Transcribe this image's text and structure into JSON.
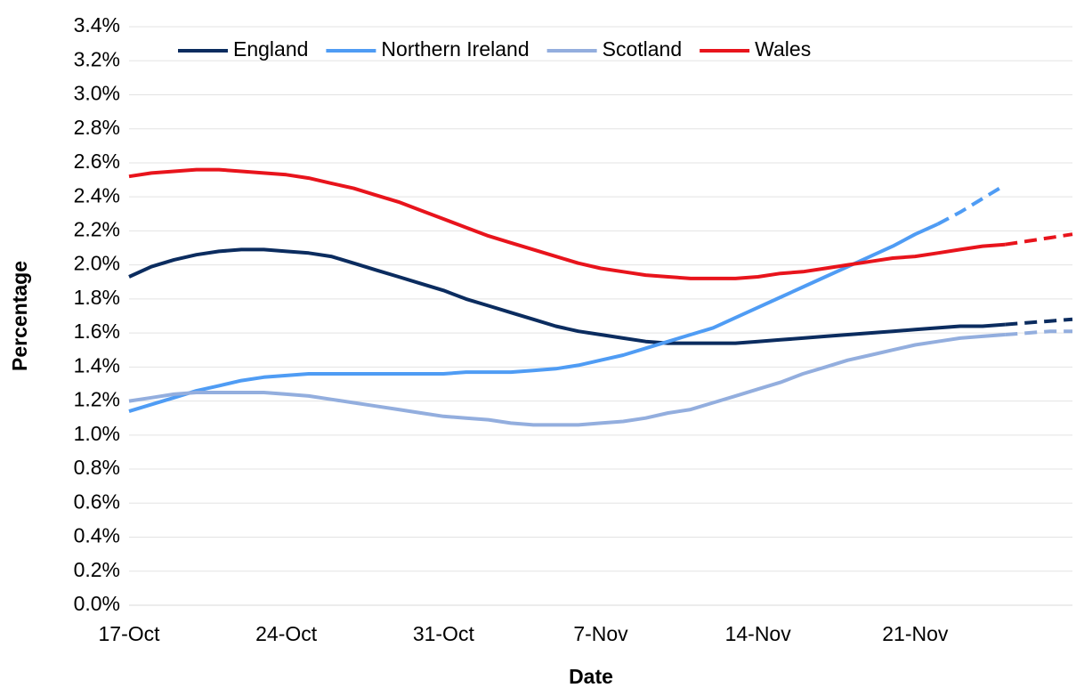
{
  "chart_data": {
    "type": "line",
    "xlabel": "Date",
    "ylabel": "Percentage",
    "categories": [
      "17-Oct",
      null,
      null,
      null,
      null,
      null,
      null,
      "24-Oct",
      null,
      null,
      null,
      null,
      null,
      null,
      "31-Oct",
      null,
      null,
      null,
      null,
      null,
      null,
      "7-Nov",
      null,
      null,
      null,
      null,
      null,
      null,
      "14-Nov",
      null,
      null,
      null,
      null,
      null,
      null,
      "21-Nov",
      null,
      null,
      null,
      null,
      null,
      null,
      null
    ],
    "ylim": [
      0,
      3.4
    ],
    "yticks": [
      {
        "value": 0,
        "label": "0.0%"
      },
      {
        "value": 0.2,
        "label": "0.2%"
      },
      {
        "value": 0.4,
        "label": "0.4%"
      },
      {
        "value": 0.6,
        "label": "0.6%"
      },
      {
        "value": 0.8,
        "label": "0.8%"
      },
      {
        "value": 1.0,
        "label": "1.0%"
      },
      {
        "value": 1.2,
        "label": "1.2%"
      },
      {
        "value": 1.4,
        "label": "1.4%"
      },
      {
        "value": 1.6,
        "label": "1.6%"
      },
      {
        "value": 1.8,
        "label": "1.8%"
      },
      {
        "value": 2.0,
        "label": "2.0%"
      },
      {
        "value": 2.2,
        "label": "2.2%"
      },
      {
        "value": 2.4,
        "label": "2.4%"
      },
      {
        "value": 2.6,
        "label": "2.6%"
      },
      {
        "value": 2.8,
        "label": "2.8%"
      },
      {
        "value": 3.0,
        "label": "3.0%"
      },
      {
        "value": 3.2,
        "label": "3.2%"
      },
      {
        "value": 3.4,
        "label": "3.4%"
      }
    ],
    "grid": true,
    "legend": "top-left",
    "series": [
      {
        "name": "England",
        "color": "#0b2c5f",
        "values": [
          1.93,
          1.99,
          2.03,
          2.06,
          2.08,
          2.09,
          2.09,
          2.08,
          2.07,
          2.05,
          2.01,
          1.97,
          1.93,
          1.89,
          1.85,
          1.8,
          1.76,
          1.72,
          1.68,
          1.64,
          1.61,
          1.59,
          1.57,
          1.55,
          1.54,
          1.54,
          1.54,
          1.54,
          1.55,
          1.56,
          1.57,
          1.58,
          1.59,
          1.6,
          1.61,
          1.62,
          1.63,
          1.64,
          1.64,
          1.65,
          null,
          null,
          null
        ],
        "projected_values": [
          null,
          null,
          null,
          null,
          null,
          null,
          null,
          null,
          null,
          null,
          null,
          null,
          null,
          null,
          null,
          null,
          null,
          null,
          null,
          null,
          null,
          null,
          null,
          null,
          null,
          null,
          null,
          null,
          null,
          null,
          null,
          null,
          null,
          null,
          null,
          null,
          null,
          null,
          null,
          1.65,
          1.66,
          1.67,
          1.68
        ]
      },
      {
        "name": "Northern Ireland",
        "color": "#4f9cf4",
        "values": [
          1.14,
          1.18,
          1.22,
          1.26,
          1.29,
          1.32,
          1.34,
          1.35,
          1.36,
          1.36,
          1.36,
          1.36,
          1.36,
          1.36,
          1.36,
          1.37,
          1.37,
          1.37,
          1.38,
          1.39,
          1.41,
          1.44,
          1.47,
          1.51,
          1.55,
          1.59,
          1.63,
          1.69,
          1.75,
          1.81,
          1.87,
          1.93,
          1.99,
          2.05,
          2.11,
          2.18,
          2.24,
          null,
          null,
          null,
          null,
          null,
          null
        ],
        "projected_values": [
          null,
          null,
          null,
          null,
          null,
          null,
          null,
          null,
          null,
          null,
          null,
          null,
          null,
          null,
          null,
          null,
          null,
          null,
          null,
          null,
          null,
          null,
          null,
          null,
          null,
          null,
          null,
          null,
          null,
          null,
          null,
          null,
          null,
          null,
          null,
          null,
          2.24,
          2.31,
          2.39,
          2.47,
          null,
          null,
          null
        ]
      },
      {
        "name": "Scotland",
        "color": "#93aede",
        "values": [
          1.2,
          1.22,
          1.24,
          1.25,
          1.25,
          1.25,
          1.25,
          1.24,
          1.23,
          1.21,
          1.19,
          1.17,
          1.15,
          1.13,
          1.11,
          1.1,
          1.09,
          1.07,
          1.06,
          1.06,
          1.06,
          1.07,
          1.08,
          1.1,
          1.13,
          1.15,
          1.19,
          1.23,
          1.27,
          1.31,
          1.36,
          1.4,
          1.44,
          1.47,
          1.5,
          1.53,
          1.55,
          1.57,
          1.58,
          1.59,
          null,
          null,
          null
        ],
        "projected_values": [
          null,
          null,
          null,
          null,
          null,
          null,
          null,
          null,
          null,
          null,
          null,
          null,
          null,
          null,
          null,
          null,
          null,
          null,
          null,
          null,
          null,
          null,
          null,
          null,
          null,
          null,
          null,
          null,
          null,
          null,
          null,
          null,
          null,
          null,
          null,
          null,
          null,
          null,
          null,
          1.59,
          1.6,
          1.61,
          1.61
        ]
      },
      {
        "name": "Wales",
        "color": "#e8141c",
        "values": [
          2.52,
          2.54,
          2.55,
          2.56,
          2.56,
          2.55,
          2.54,
          2.53,
          2.51,
          2.48,
          2.45,
          2.41,
          2.37,
          2.32,
          2.27,
          2.22,
          2.17,
          2.13,
          2.09,
          2.05,
          2.01,
          1.98,
          1.96,
          1.94,
          1.93,
          1.92,
          1.92,
          1.92,
          1.93,
          1.95,
          1.96,
          1.98,
          2.0,
          2.02,
          2.04,
          2.05,
          2.07,
          2.09,
          2.11,
          2.12,
          null,
          null,
          null
        ],
        "projected_values": [
          null,
          null,
          null,
          null,
          null,
          null,
          null,
          null,
          null,
          null,
          null,
          null,
          null,
          null,
          null,
          null,
          null,
          null,
          null,
          null,
          null,
          null,
          null,
          null,
          null,
          null,
          null,
          null,
          null,
          null,
          null,
          null,
          null,
          null,
          null,
          null,
          null,
          null,
          null,
          2.12,
          2.14,
          2.16,
          2.18
        ]
      }
    ]
  }
}
